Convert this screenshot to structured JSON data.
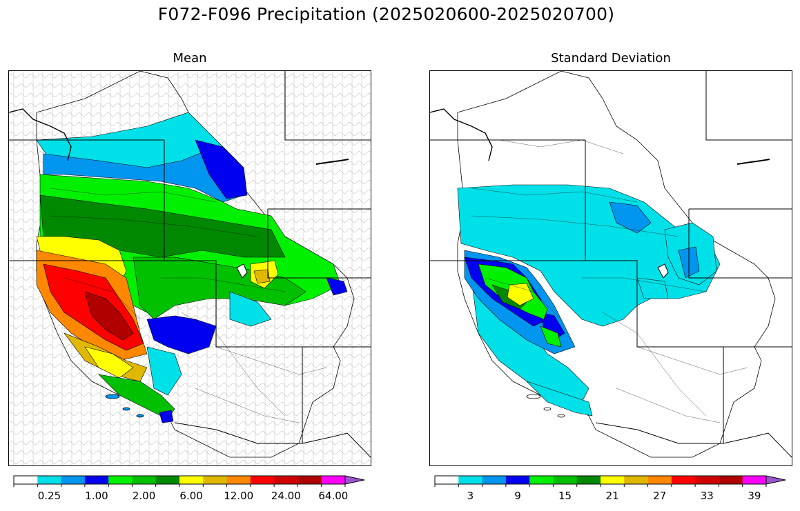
{
  "title": "F072-F096 Precipitation (2025020600-2025020700)",
  "panels": {
    "mean": {
      "title": "Mean",
      "colorbar": {
        "colors": [
          "#ffffff",
          "#00e0e8",
          "#0096f0",
          "#0000f0",
          "#00f000",
          "#00c000",
          "#008800",
          "#ffff00",
          "#e0b800",
          "#ff8800",
          "#ff0000",
          "#d00000",
          "#b00000",
          "#ff00ff",
          "#9955cc"
        ],
        "extend": "max",
        "ticks": [
          "0.25",
          "1.00",
          "2.00",
          "6.00",
          "12.00",
          "24.00",
          "64.00"
        ]
      }
    },
    "std": {
      "title": "Standard Deviation",
      "colorbar": {
        "colors": [
          "#ffffff",
          "#00e0e8",
          "#0096f0",
          "#0000f0",
          "#00f000",
          "#00c000",
          "#008800",
          "#ffff00",
          "#e0b800",
          "#ff8800",
          "#ff0000",
          "#d00000",
          "#b00000",
          "#ff00ff",
          "#9955cc"
        ],
        "extend": "max",
        "ticks": [
          "3",
          "9",
          "15",
          "21",
          "27",
          "33",
          "39"
        ]
      }
    }
  }
}
